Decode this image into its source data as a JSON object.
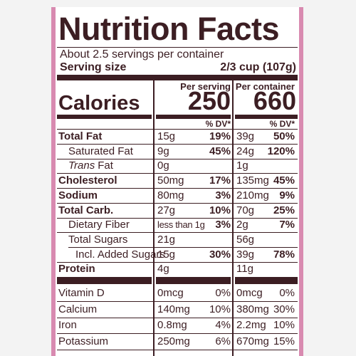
{
  "header": {
    "title": "Nutrition Facts",
    "servings": "About 2.5 servings per container",
    "serving_size_label": "Serving size",
    "serving_size": "2/3 cup (107g)"
  },
  "columns": {
    "per_serving": "Per serving",
    "per_container": "Per container"
  },
  "calories": {
    "label": "Calories",
    "per_serving": "250",
    "per_container": "660"
  },
  "dv_header": {
    "per_serving": "% DV*",
    "per_container": "% DV*"
  },
  "nutrients": [
    {
      "label": "Total Fat",
      "serving": "15g",
      "serving_dv": "19%",
      "container": "39g",
      "container_dv": "50%"
    },
    {
      "label": "Saturated Fat",
      "serving": "9g",
      "serving_dv": "45%",
      "container": "24g",
      "container_dv": "120%"
    },
    {
      "label_prefix": "Trans",
      "label": "Fat",
      "serving": "0g",
      "container": "1g"
    },
    {
      "label": "Cholesterol",
      "serving": "50mg",
      "serving_dv": "17%",
      "container": "135mg",
      "container_dv": "45%"
    },
    {
      "label": "Sodium",
      "serving": "80mg",
      "serving_dv": "3%",
      "container": "210mg",
      "container_dv": "9%"
    },
    {
      "label": "Total Carb.",
      "serving": "27g",
      "serving_dv": "10%",
      "container": "70g",
      "container_dv": "25%"
    },
    {
      "label": "Dietary Fiber",
      "serving": "less than 1g",
      "serving_dv": "3%",
      "container": "2g",
      "container_dv": "7%"
    },
    {
      "label": "Total Sugars",
      "serving": "21g",
      "container": "56g"
    },
    {
      "label": "Incl. Added Sugars",
      "serving": "15g",
      "serving_dv": "30%",
      "container": "39g",
      "container_dv": "78%"
    },
    {
      "label": "Protein",
      "serving": "4g",
      "container": "11g"
    }
  ],
  "vitamins": [
    {
      "label": "Vitamin D",
      "serving": "0mcg",
      "serving_dv": "0%",
      "container": "0mcg",
      "container_dv": "0%"
    },
    {
      "label": "Calcium",
      "serving": "140mg",
      "serving_dv": "10%",
      "container": "380mg",
      "container_dv": "30%"
    },
    {
      "label": "Iron",
      "serving": "0.8mg",
      "serving_dv": "4%",
      "container": "2.2mg",
      "container_dv": "10%"
    },
    {
      "label": "Potassium",
      "serving": "250mg",
      "serving_dv": "6%",
      "container": "670mg",
      "container_dv": "15%"
    }
  ]
}
